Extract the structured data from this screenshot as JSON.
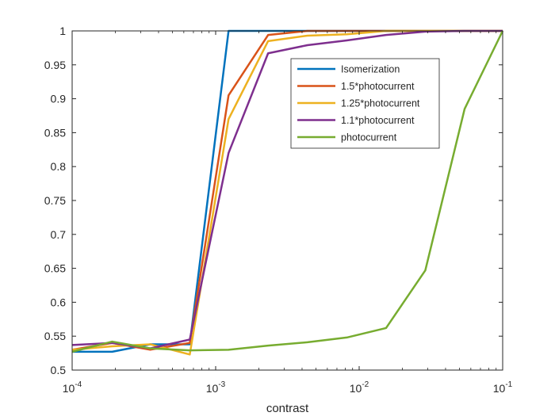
{
  "chart_data": {
    "type": "line",
    "xlabel": "contrast",
    "ylabel": "",
    "title": "",
    "x_scale": "log",
    "xlim": [
      0.0001,
      0.1
    ],
    "ylim": [
      0.5,
      1
    ],
    "x_ticks": [
      {
        "value": 0.0001,
        "base": "10",
        "exp": "-4"
      },
      {
        "value": 0.001,
        "base": "10",
        "exp": "-3"
      },
      {
        "value": 0.01,
        "base": "10",
        "exp": "-2"
      },
      {
        "value": 0.1,
        "base": "10",
        "exp": "-1"
      }
    ],
    "y_ticks": [
      {
        "value": 0.5,
        "label": "0.5"
      },
      {
        "value": 0.55,
        "label": "0.55"
      },
      {
        "value": 0.6,
        "label": "0.6"
      },
      {
        "value": 0.65,
        "label": "0.65"
      },
      {
        "value": 0.7,
        "label": "0.7"
      },
      {
        "value": 0.75,
        "label": "0.75"
      },
      {
        "value": 0.8,
        "label": "0.8"
      },
      {
        "value": 0.85,
        "label": "0.85"
      },
      {
        "value": 0.9,
        "label": "0.9"
      },
      {
        "value": 0.95,
        "label": "0.95"
      },
      {
        "value": 1.0,
        "label": "1"
      }
    ],
    "grid": false,
    "legend_position": "top-right",
    "x": [
      0.0001,
      0.00019,
      0.00035,
      0.00066,
      0.00123,
      0.00232,
      0.00436,
      0.0082,
      0.0154,
      0.0289,
      0.0543,
      0.1
    ],
    "series": [
      {
        "name": "Isomerization",
        "color": "#0072BD",
        "values": [
          0.527,
          0.527,
          0.538,
          0.538,
          1.0,
          1.0,
          1.0,
          1.0,
          1.0,
          1.0,
          1.0,
          1.0
        ]
      },
      {
        "name": "1.5*photocurrent",
        "color": "#D95319",
        "values": [
          0.53,
          0.54,
          0.53,
          0.54,
          0.905,
          0.994,
          1.0,
          1.0,
          1.0,
          1.0,
          1.0,
          1.0
        ]
      },
      {
        "name": "1.25*photocurrent",
        "color": "#EDB120",
        "values": [
          0.53,
          0.535,
          0.538,
          0.523,
          0.87,
          0.985,
          0.993,
          0.995,
          1.0,
          1.0,
          1.0,
          1.0
        ]
      },
      {
        "name": "1.1*photocurrent",
        "color": "#7E2F8E",
        "values": [
          0.537,
          0.54,
          0.532,
          0.545,
          0.82,
          0.967,
          0.979,
          0.986,
          0.994,
          0.999,
          1.0,
          1.0
        ]
      },
      {
        "name": "photocurrent",
        "color": "#77AC30",
        "values": [
          0.527,
          0.542,
          0.532,
          0.529,
          0.53,
          0.536,
          0.541,
          0.548,
          0.562,
          0.647,
          0.885,
          1.0
        ]
      }
    ]
  }
}
